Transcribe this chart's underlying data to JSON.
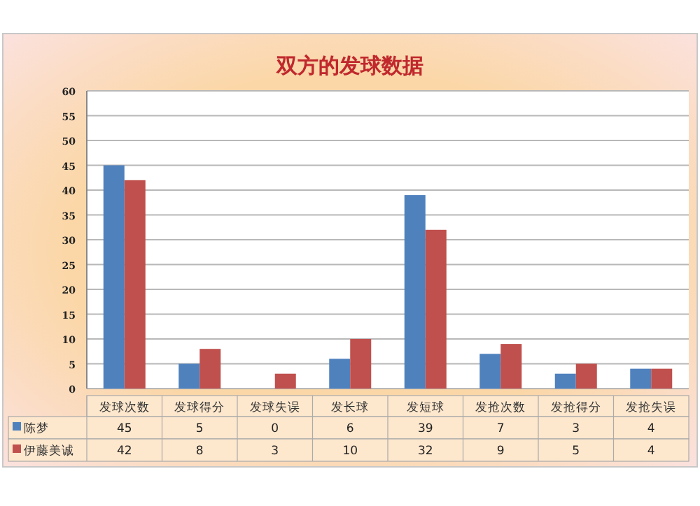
{
  "chart_data": {
    "type": "bar",
    "title": "双方的发球数据",
    "categories": [
      "发球次数",
      "发球得分",
      "发球失误",
      "发长球",
      "发短球",
      "发抢次数",
      "发抢得分",
      "发抢失误"
    ],
    "series": [
      {
        "name": "陈梦",
        "color": "#4f81bd",
        "values": [
          45,
          5,
          0,
          6,
          39,
          7,
          3,
          4
        ]
      },
      {
        "name": "伊藤美诚",
        "color": "#c0504d",
        "values": [
          42,
          8,
          3,
          10,
          32,
          9,
          5,
          4
        ]
      }
    ],
    "ylim": [
      0,
      60
    ],
    "yticks": [
      0,
      5,
      10,
      15,
      20,
      25,
      30,
      35,
      40,
      45,
      50,
      55,
      60
    ],
    "grid": "y",
    "legend": "bottom left",
    "data_labels": true
  }
}
